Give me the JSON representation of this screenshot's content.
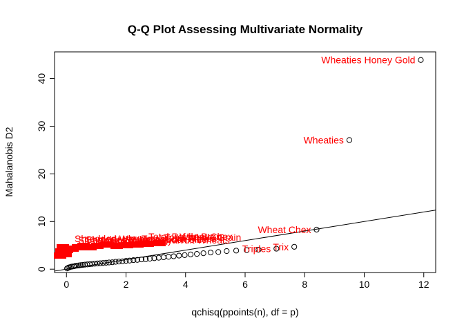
{
  "chart_data": {
    "type": "scatter",
    "title": "Q-Q Plot Assessing Multivariate Normality",
    "xlabel": "qchisq(ppoints(n), df = p)",
    "ylabel": "Mahalanobis D2",
    "xlim": [
      -0.4,
      12.4
    ],
    "ylim": [
      -0.7,
      45.6
    ],
    "xticks": [
      0,
      2,
      4,
      6,
      8,
      10,
      12
    ],
    "yticks": [
      0,
      10,
      20,
      30,
      40
    ],
    "grid": false,
    "point_color": "#000000",
    "label_color": "#ff0000",
    "line_color": "#000000",
    "reference_line": {
      "intercept": 0,
      "slope": 1
    },
    "points": [
      {
        "x": 0.02,
        "y": 0.15,
        "label": ""
      },
      {
        "x": 0.06,
        "y": 0.3,
        "label": ""
      },
      {
        "x": 0.1,
        "y": 0.4,
        "label": ""
      },
      {
        "x": 0.15,
        "y": 0.5,
        "label": ""
      },
      {
        "x": 0.2,
        "y": 0.55,
        "label": ""
      },
      {
        "x": 0.25,
        "y": 0.6,
        "label": ""
      },
      {
        "x": 0.3,
        "y": 0.7,
        "label": ""
      },
      {
        "x": 0.36,
        "y": 0.75,
        "label": ""
      },
      {
        "x": 0.42,
        "y": 0.8,
        "label": ""
      },
      {
        "x": 0.48,
        "y": 0.85,
        "label": ""
      },
      {
        "x": 0.55,
        "y": 0.9,
        "label": ""
      },
      {
        "x": 0.62,
        "y": 0.95,
        "label": ""
      },
      {
        "x": 0.7,
        "y": 1.0,
        "label": ""
      },
      {
        "x": 0.78,
        "y": 1.05,
        "label": ""
      },
      {
        "x": 0.86,
        "y": 1.1,
        "label": ""
      },
      {
        "x": 0.95,
        "y": 1.15,
        "label": ""
      },
      {
        "x": 1.04,
        "y": 1.2,
        "label": ""
      },
      {
        "x": 1.13,
        "y": 1.25,
        "label": ""
      },
      {
        "x": 1.23,
        "y": 1.3,
        "label": ""
      },
      {
        "x": 1.33,
        "y": 1.35,
        "label": ""
      },
      {
        "x": 1.43,
        "y": 1.4,
        "label": ""
      },
      {
        "x": 1.54,
        "y": 1.45,
        "label": ""
      },
      {
        "x": 1.65,
        "y": 1.55,
        "label": ""
      },
      {
        "x": 1.76,
        "y": 1.6,
        "label": ""
      },
      {
        "x": 1.88,
        "y": 1.65,
        "label": ""
      },
      {
        "x": 2.0,
        "y": 1.75,
        "label": ""
      },
      {
        "x": 2.12,
        "y": 1.8,
        "label": ""
      },
      {
        "x": 2.25,
        "y": 1.9,
        "label": ""
      },
      {
        "x": 2.38,
        "y": 1.95,
        "label": ""
      },
      {
        "x": 2.52,
        "y": 2.05,
        "label": ""
      },
      {
        "x": 2.66,
        "y": 2.1,
        "label": ""
      },
      {
        "x": 2.8,
        "y": 2.2,
        "label": ""
      },
      {
        "x": 2.95,
        "y": 2.3,
        "label": ""
      },
      {
        "x": 3.1,
        "y": 2.4,
        "label": ""
      },
      {
        "x": 3.26,
        "y": 2.5,
        "label": ""
      },
      {
        "x": 3.43,
        "y": 2.6,
        "label": ""
      },
      {
        "x": 3.6,
        "y": 2.7,
        "label": ""
      },
      {
        "x": 3.78,
        "y": 2.85,
        "label": ""
      },
      {
        "x": 3.97,
        "y": 2.95,
        "label": ""
      },
      {
        "x": 4.17,
        "y": 3.1,
        "label": ""
      },
      {
        "x": 4.38,
        "y": 3.2,
        "label": ""
      },
      {
        "x": 4.6,
        "y": 3.35,
        "label": ""
      },
      {
        "x": 4.84,
        "y": 3.5,
        "label": ""
      },
      {
        "x": 5.1,
        "y": 3.6,
        "label": ""
      },
      {
        "x": 5.38,
        "y": 3.8,
        "label": ""
      },
      {
        "x": 5.7,
        "y": 3.9,
        "label": ""
      },
      {
        "x": 6.05,
        "y": 4.0,
        "label": ""
      },
      {
        "x": 6.45,
        "y": 4.1,
        "label": ""
      },
      {
        "x": 7.05,
        "y": 4.3,
        "label": "Triples"
      },
      {
        "x": 7.65,
        "y": 4.7,
        "label": "Trix"
      },
      {
        "x": 8.4,
        "y": 8.3,
        "label": "Wheat Chex"
      },
      {
        "x": 9.5,
        "y": 27.1,
        "label": "Wheaties"
      },
      {
        "x": 11.9,
        "y": 43.9,
        "label": "Wheaties Honey Gold"
      }
    ],
    "crowded_labels": [
      "Shredded Wheat",
      "Shredded Wheat 'n'Bran",
      "Shredded Wheat spoon size",
      "Smacks",
      "Special K",
      "Strawberry Fruit Wheats",
      "Total Corn Flakes",
      "Total Raisin Bran",
      "Total Whole Grain",
      "Wheat Chex"
    ]
  }
}
